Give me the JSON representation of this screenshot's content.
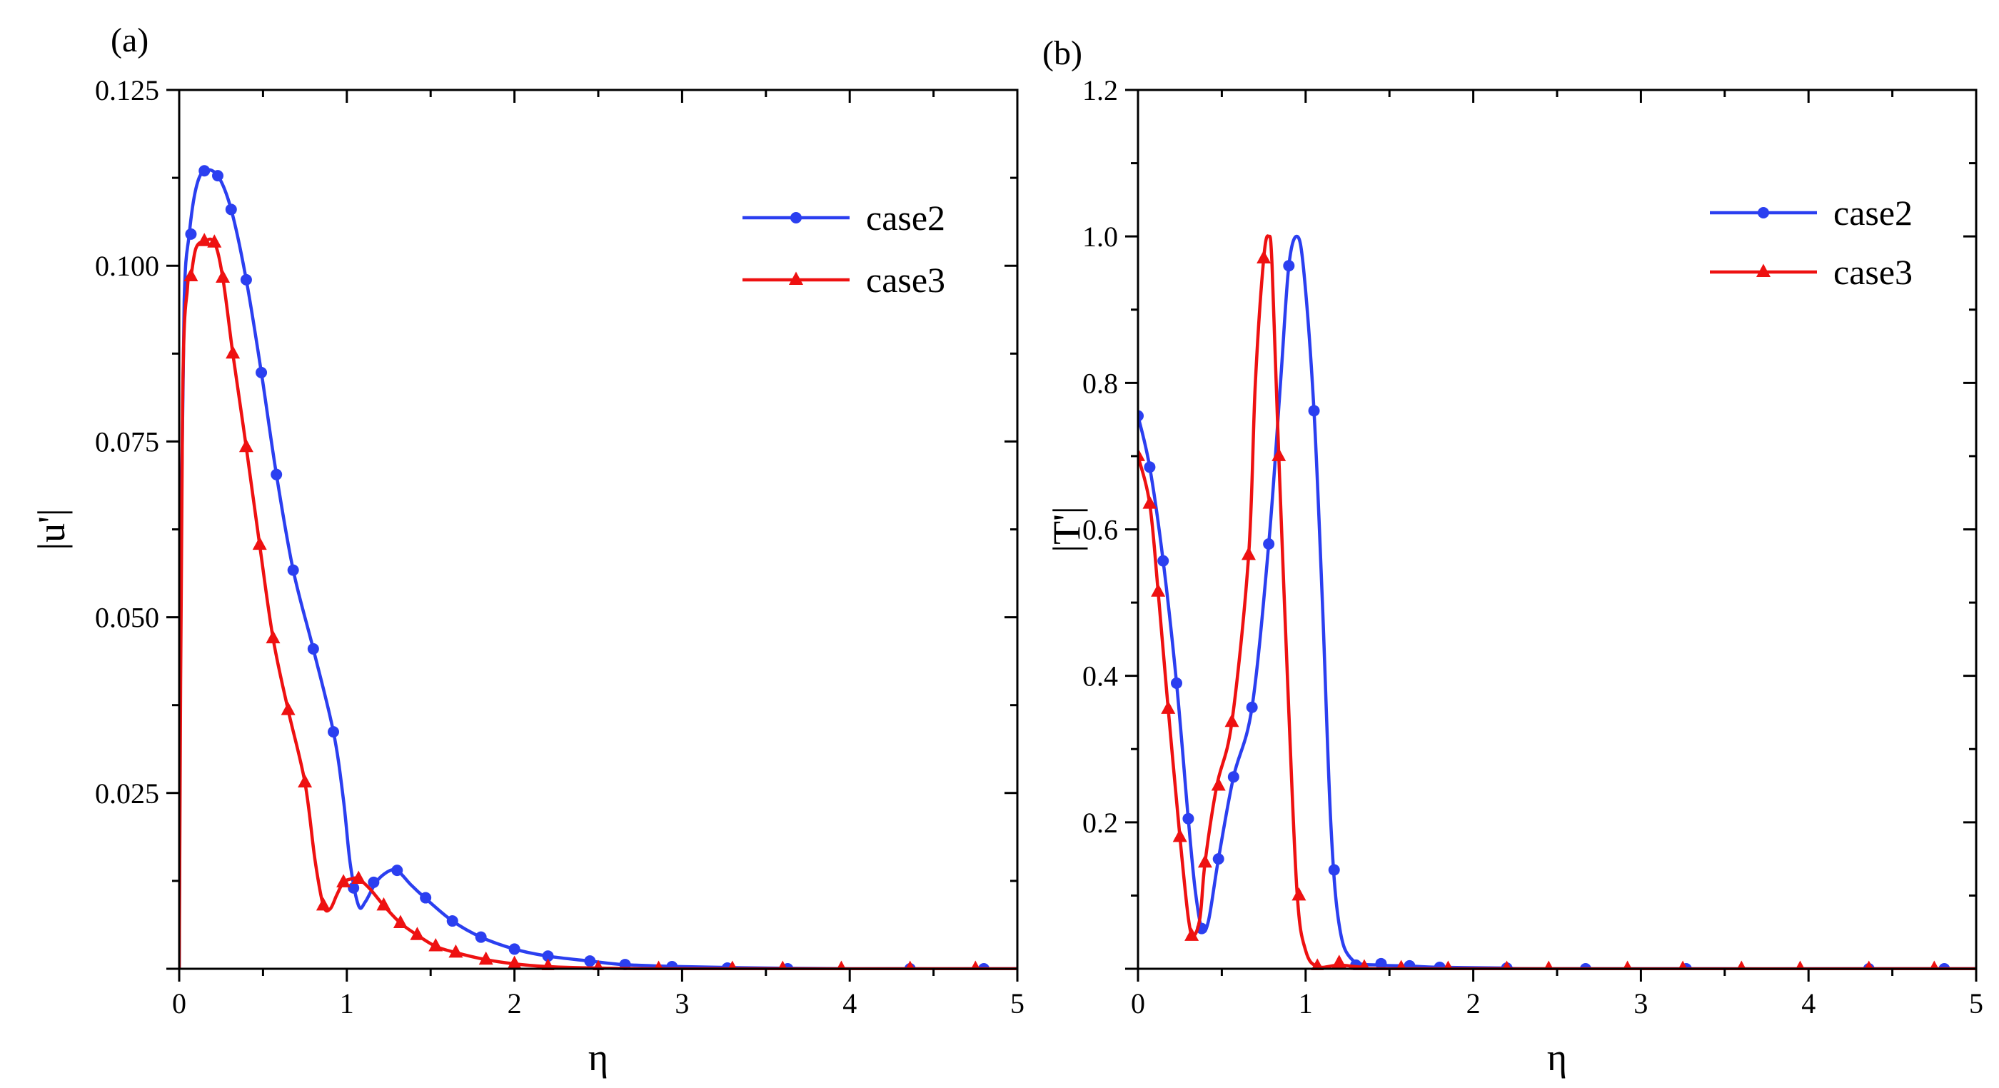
{
  "chart_data": [
    {
      "type": "line",
      "panel_label": "(a)",
      "xlabel": "η",
      "ylabel": "|u'|",
      "xlim": [
        0,
        5
      ],
      "ylim": [
        0,
        0.125
      ],
      "x_ticks": [
        0,
        1,
        2,
        3,
        4,
        5
      ],
      "x_tick_labels": [
        "0",
        "1",
        "2",
        "3",
        "4",
        "5"
      ],
      "y_ticks": [
        0.025,
        0.05,
        0.075,
        0.1,
        0.125
      ],
      "y_tick_labels": [
        "0.025",
        "0.050",
        "0.075",
        "0.100",
        "0.125"
      ],
      "legend_position": "top-right",
      "series": [
        {
          "name": "case2",
          "color": "#2b3ff0",
          "marker": "circle",
          "curve": [
            [
              0,
              0
            ],
            [
              0.01,
              0.06
            ],
            [
              0.03,
              0.095
            ],
            [
              0.06,
              0.1045
            ],
            [
              0.1,
              0.111
            ],
            [
              0.15,
              0.1135
            ],
            [
              0.23,
              0.1128
            ],
            [
              0.31,
              0.108
            ],
            [
              0.4,
              0.098
            ],
            [
              0.49,
              0.0848
            ],
            [
              0.58,
              0.0703
            ],
            [
              0.68,
              0.0567
            ],
            [
              0.8,
              0.0455
            ],
            [
              0.92,
              0.0337
            ],
            [
              0.98,
              0.024
            ],
            [
              1.02,
              0.015
            ],
            [
              1.07,
              0.009
            ],
            [
              1.11,
              0.0095
            ],
            [
              1.18,
              0.0125
            ],
            [
              1.26,
              0.014
            ],
            [
              1.31,
              0.0138
            ],
            [
              1.38,
              0.012
            ],
            [
              1.47,
              0.01
            ],
            [
              1.63,
              0.0068
            ],
            [
              1.8,
              0.0045
            ],
            [
              2.0,
              0.0028
            ],
            [
              2.2,
              0.0018
            ],
            [
              2.45,
              0.0011
            ],
            [
              2.65,
              0.0006
            ],
            [
              3.0,
              0.0003
            ],
            [
              3.5,
              0.0001
            ],
            [
              4.0,
              0
            ],
            [
              5.0,
              0
            ]
          ],
          "markers": [
            [
              0.07,
              0.1045
            ],
            [
              0.15,
              0.1135
            ],
            [
              0.23,
              0.1128
            ],
            [
              0.31,
              0.108
            ],
            [
              0.4,
              0.098
            ],
            [
              0.49,
              0.0848
            ],
            [
              0.58,
              0.0703
            ],
            [
              0.68,
              0.0567
            ],
            [
              0.8,
              0.0455
            ],
            [
              0.92,
              0.0337
            ],
            [
              1.04,
              0.0115
            ],
            [
              1.16,
              0.0123
            ],
            [
              1.3,
              0.014
            ],
            [
              1.47,
              0.0101
            ],
            [
              1.63,
              0.0068
            ],
            [
              1.8,
              0.0045
            ],
            [
              2.0,
              0.0028
            ],
            [
              2.2,
              0.0018
            ],
            [
              2.45,
              0.0011
            ],
            [
              2.66,
              0.0006
            ],
            [
              2.94,
              0.0003
            ],
            [
              3.27,
              0.0001
            ],
            [
              3.63,
              0
            ],
            [
              4.36,
              0
            ],
            [
              4.8,
              0
            ]
          ]
        },
        {
          "name": "case3",
          "color": "#ee1111",
          "marker": "triangle",
          "curve": [
            [
              0,
              0
            ],
            [
              0.02,
              0.08
            ],
            [
              0.05,
              0.097
            ],
            [
              0.07,
              0.0985
            ],
            [
              0.1,
              0.1025
            ],
            [
              0.15,
              0.1035
            ],
            [
              0.21,
              0.1033
            ],
            [
              0.26,
              0.0983
            ],
            [
              0.32,
              0.0875
            ],
            [
              0.4,
              0.0742
            ],
            [
              0.48,
              0.0603
            ],
            [
              0.56,
              0.047
            ],
            [
              0.65,
              0.0368
            ],
            [
              0.75,
              0.0265
            ],
            [
              0.81,
              0.0155
            ],
            [
              0.86,
              0.009
            ],
            [
              0.9,
              0.0085
            ],
            [
              0.94,
              0.0105
            ],
            [
              0.98,
              0.0123
            ],
            [
              1.03,
              0.0128
            ],
            [
              1.07,
              0.0128
            ],
            [
              1.14,
              0.0113
            ],
            [
              1.22,
              0.009
            ],
            [
              1.32,
              0.0065
            ],
            [
              1.42,
              0.0048
            ],
            [
              1.53,
              0.0032
            ],
            [
              1.65,
              0.0023
            ],
            [
              1.83,
              0.0013
            ],
            [
              2.0,
              0.0007
            ],
            [
              2.2,
              0.0003
            ],
            [
              2.5,
              0.0001
            ],
            [
              3.0,
              0
            ],
            [
              5.0,
              0
            ]
          ],
          "markers": [
            [
              0.07,
              0.0985
            ],
            [
              0.15,
              0.1035
            ],
            [
              0.21,
              0.1033
            ],
            [
              0.26,
              0.0983
            ],
            [
              0.32,
              0.0875
            ],
            [
              0.4,
              0.0742
            ],
            [
              0.48,
              0.0603
            ],
            [
              0.56,
              0.047
            ],
            [
              0.65,
              0.0368
            ],
            [
              0.75,
              0.0265
            ],
            [
              0.86,
              0.009
            ],
            [
              0.98,
              0.0123
            ],
            [
              1.07,
              0.0128
            ],
            [
              1.22,
              0.009
            ],
            [
              1.32,
              0.0065
            ],
            [
              1.42,
              0.0048
            ],
            [
              1.53,
              0.0032
            ],
            [
              1.65,
              0.0023
            ],
            [
              1.83,
              0.0013
            ],
            [
              2.0,
              0.0007
            ],
            [
              2.2,
              0.0003
            ],
            [
              2.5,
              0.0001
            ],
            [
              2.86,
              0
            ],
            [
              3.3,
              0
            ],
            [
              3.6,
              0
            ],
            [
              3.95,
              0
            ],
            [
              4.36,
              0
            ],
            [
              4.75,
              0
            ]
          ]
        }
      ]
    },
    {
      "type": "line",
      "panel_label": "(b)",
      "xlabel": "η",
      "ylabel": "|T'|",
      "xlim": [
        0,
        5
      ],
      "ylim": [
        0,
        1.2
      ],
      "x_ticks": [
        0,
        1,
        2,
        3,
        4,
        5
      ],
      "x_tick_labels": [
        "0",
        "1",
        "2",
        "3",
        "4",
        "5"
      ],
      "y_ticks": [
        0.2,
        0.4,
        0.6,
        0.8,
        1.0,
        1.2
      ],
      "y_tick_labels": [
        "0.2",
        "0.4",
        "0.6",
        "0.8",
        "1.0",
        "1.2"
      ],
      "legend_position": "top-right",
      "series": [
        {
          "name": "case2",
          "color": "#2b3ff0",
          "marker": "circle",
          "curve": [
            [
              0,
              0.755
            ],
            [
              0.07,
              0.685
            ],
            [
              0.15,
              0.557
            ],
            [
              0.23,
              0.39
            ],
            [
              0.3,
              0.205
            ],
            [
              0.34,
              0.11
            ],
            [
              0.38,
              0.055
            ],
            [
              0.42,
              0.065
            ],
            [
              0.48,
              0.15
            ],
            [
              0.57,
              0.262
            ],
            [
              0.68,
              0.357
            ],
            [
              0.78,
              0.58
            ],
            [
              0.85,
              0.8
            ],
            [
              0.9,
              0.96
            ],
            [
              0.95,
              1.0
            ],
            [
              0.99,
              0.95
            ],
            [
              1.05,
              0.762
            ],
            [
              1.1,
              0.5
            ],
            [
              1.15,
              0.2
            ],
            [
              1.2,
              0.06
            ],
            [
              1.28,
              0.012
            ],
            [
              1.45,
              0.005
            ],
            [
              1.6,
              0.004
            ],
            [
              1.8,
              0.002
            ],
            [
              2.2,
              0.001
            ],
            [
              2.5,
              0
            ],
            [
              5.0,
              0
            ]
          ],
          "markers": [
            [
              0,
              0.755
            ],
            [
              0.07,
              0.685
            ],
            [
              0.15,
              0.557
            ],
            [
              0.23,
              0.39
            ],
            [
              0.3,
              0.205
            ],
            [
              0.38,
              0.055
            ],
            [
              0.48,
              0.15
            ],
            [
              0.57,
              0.262
            ],
            [
              0.68,
              0.357
            ],
            [
              0.78,
              0.58
            ],
            [
              0.9,
              0.96
            ],
            [
              1.05,
              0.762
            ],
            [
              1.17,
              0.135
            ],
            [
              1.3,
              0.005
            ],
            [
              1.45,
              0.007
            ],
            [
              1.62,
              0.004
            ],
            [
              1.8,
              0.002
            ],
            [
              2.2,
              0.001
            ],
            [
              2.67,
              0
            ],
            [
              3.27,
              0
            ],
            [
              4.36,
              0
            ],
            [
              4.81,
              0
            ]
          ]
        },
        {
          "name": "case3",
          "color": "#ee1111",
          "marker": "triangle",
          "curve": [
            [
              0,
              0.7
            ],
            [
              0.07,
              0.635
            ],
            [
              0.12,
              0.515
            ],
            [
              0.18,
              0.355
            ],
            [
              0.25,
              0.18
            ],
            [
              0.3,
              0.07
            ],
            [
              0.33,
              0.045
            ],
            [
              0.37,
              0.07
            ],
            [
              0.4,
              0.145
            ],
            [
              0.47,
              0.25
            ],
            [
              0.56,
              0.337
            ],
            [
              0.66,
              0.565
            ],
            [
              0.7,
              0.8
            ],
            [
              0.75,
              0.97
            ],
            [
              0.78,
              1.0
            ],
            [
              0.8,
              0.96
            ],
            [
              0.84,
              0.7
            ],
            [
              0.9,
              0.35
            ],
            [
              0.95,
              0.1
            ],
            [
              1.0,
              0.025
            ],
            [
              1.07,
              0.003
            ],
            [
              1.2,
              0.005
            ],
            [
              1.35,
              0.002
            ],
            [
              1.6,
              0
            ],
            [
              5.0,
              0
            ]
          ],
          "markers": [
            [
              0,
              0.7
            ],
            [
              0.07,
              0.635
            ],
            [
              0.12,
              0.515
            ],
            [
              0.18,
              0.355
            ],
            [
              0.25,
              0.18
            ],
            [
              0.32,
              0.045
            ],
            [
              0.4,
              0.145
            ],
            [
              0.48,
              0.25
            ],
            [
              0.56,
              0.337
            ],
            [
              0.66,
              0.565
            ],
            [
              0.75,
              0.97
            ],
            [
              0.84,
              0.7
            ],
            [
              0.96,
              0.1
            ],
            [
              1.07,
              0.003
            ],
            [
              1.2,
              0.008
            ],
            [
              1.35,
              0.002
            ],
            [
              1.57,
              0.001
            ],
            [
              1.85,
              0
            ],
            [
              2.2,
              0
            ],
            [
              2.45,
              0
            ],
            [
              2.92,
              0
            ],
            [
              3.25,
              0
            ],
            [
              3.6,
              0
            ],
            [
              3.95,
              0
            ],
            [
              4.36,
              0
            ],
            [
              4.75,
              0
            ]
          ]
        }
      ]
    }
  ]
}
